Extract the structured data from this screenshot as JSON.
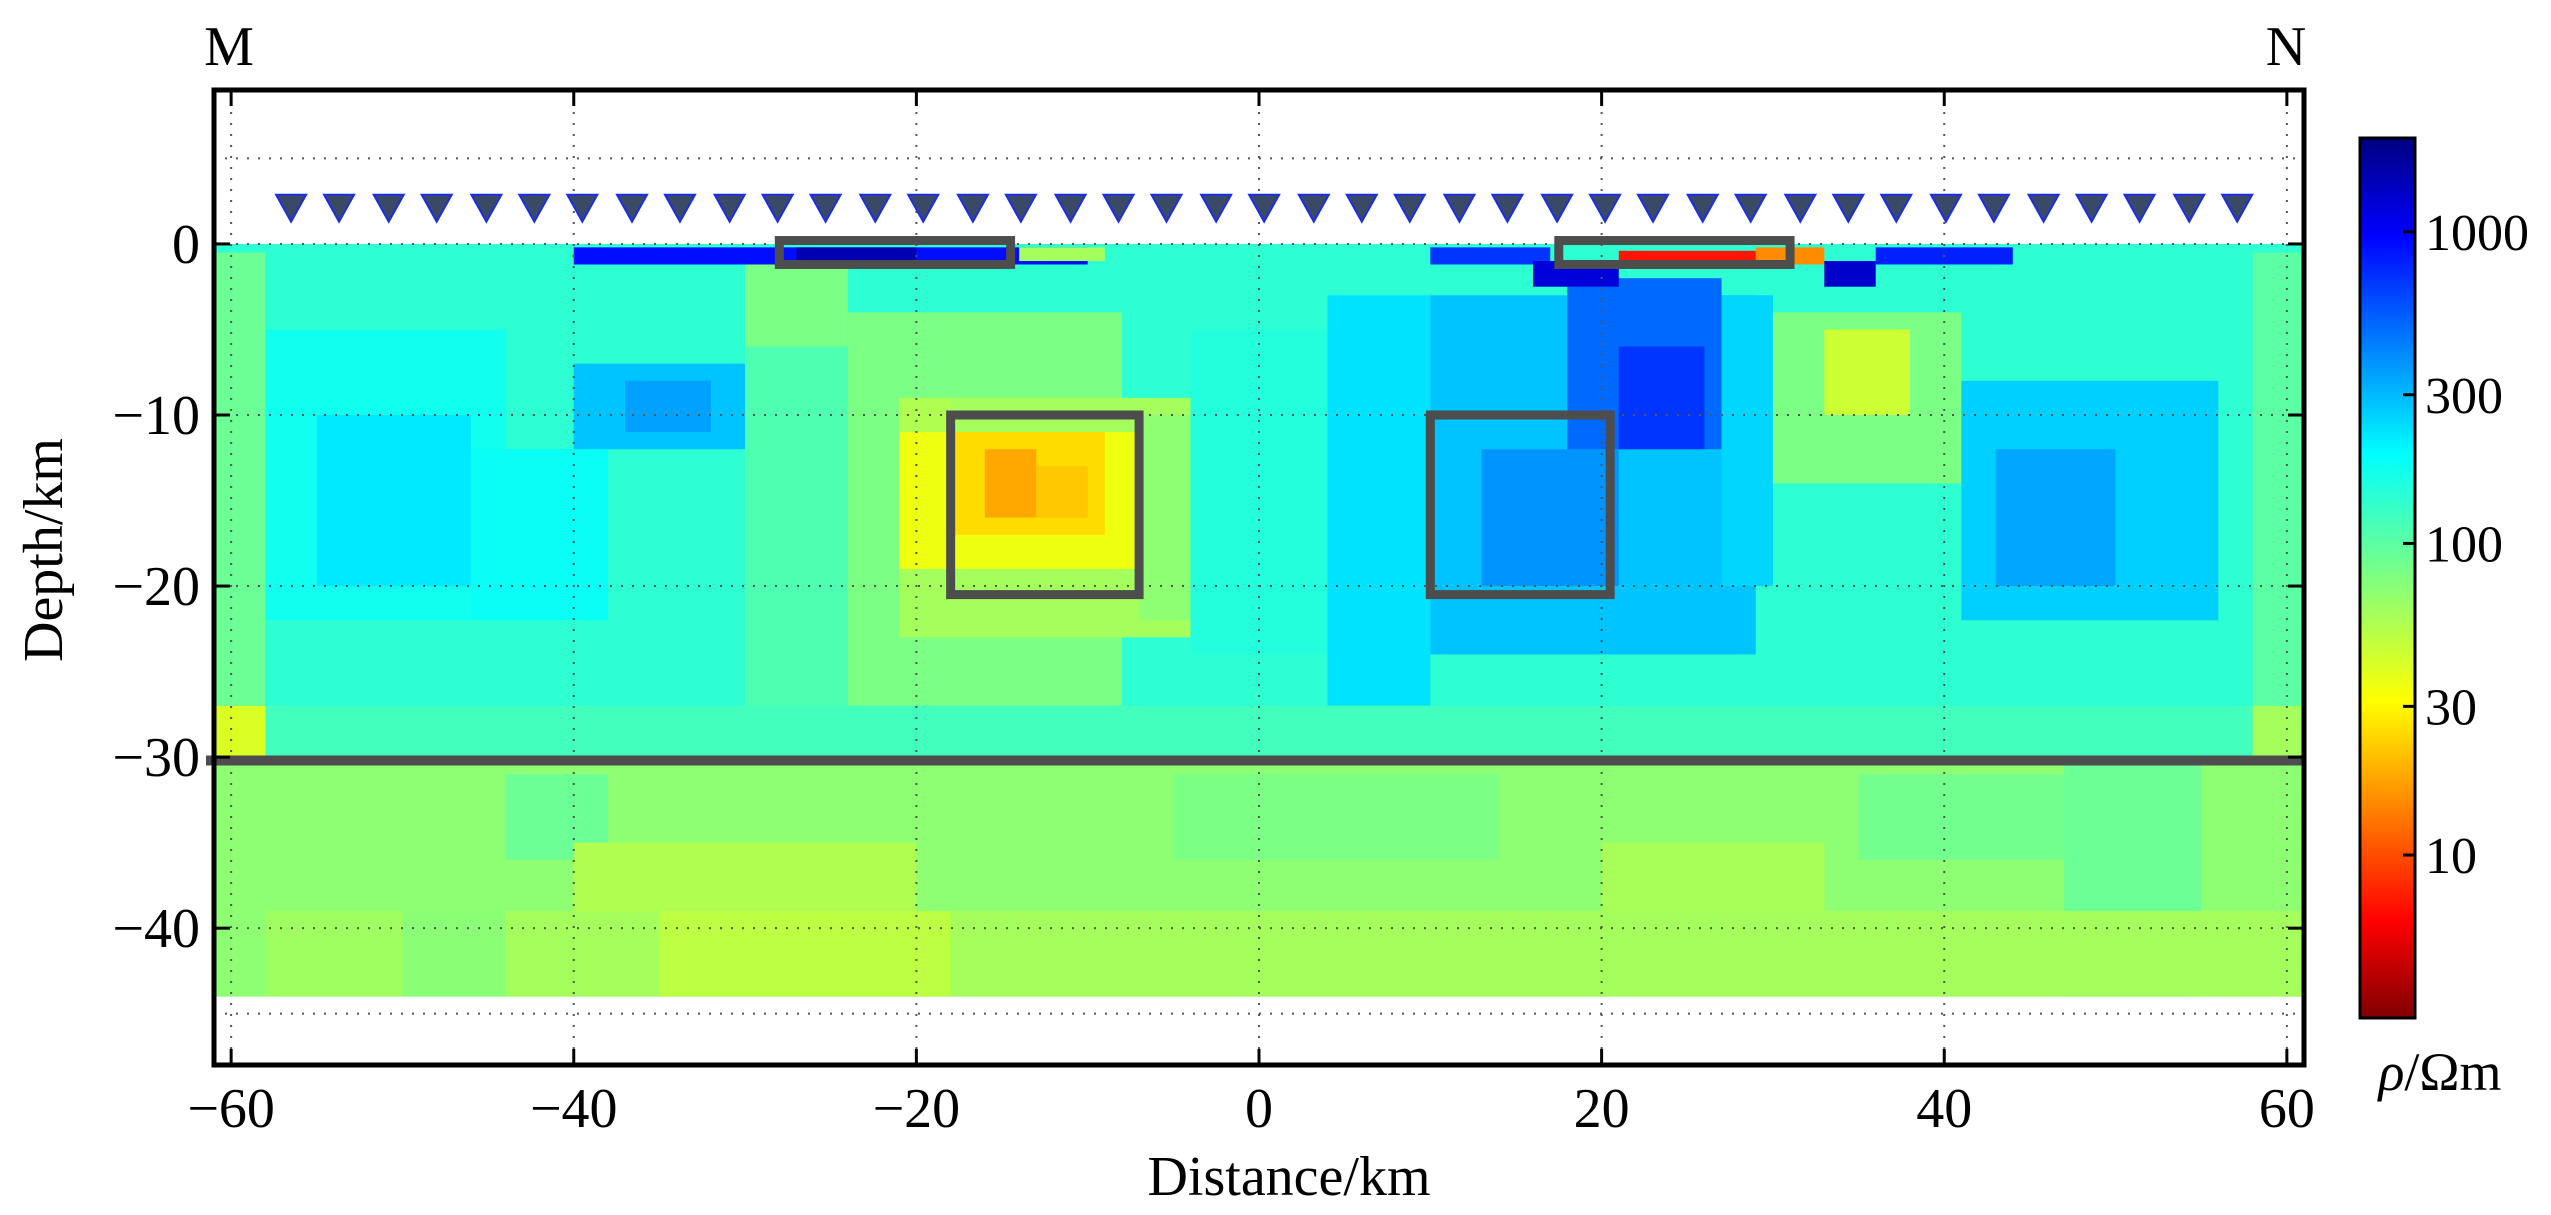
{
  "chart_data": {
    "type": "heatmap",
    "title": "",
    "corner_labels": {
      "left": "M",
      "right": "N"
    },
    "xlabel": "Distance/km",
    "ylabel": "Depth/km",
    "xlim": [
      -61,
      61
    ],
    "ylim": [
      -48,
      9
    ],
    "x_ticks": [
      -60,
      -40,
      -20,
      0,
      20,
      40,
      60
    ],
    "x_tick_labels": [
      "−60",
      "−40",
      "−20",
      "0",
      "20",
      "40",
      "60"
    ],
    "y_ticks": [
      0,
      -10,
      -20,
      -30,
      -40
    ],
    "y_tick_labels": [
      "0",
      "−10",
      "−20",
      "−30",
      "−40"
    ],
    "grid": "dotted",
    "model_extent": {
      "x": [
        -61,
        61
      ],
      "depth": [
        0,
        -44
      ]
    },
    "stations": {
      "depth": 2,
      "x": [
        -56.5,
        -53.7,
        -50.8,
        -48,
        -45.1,
        -42.3,
        -39.5,
        -36.6,
        -33.8,
        -30.9,
        -28.1,
        -25.3,
        -22.4,
        -19.6,
        -16.7,
        -13.9,
        -11,
        -8.2,
        -5.4,
        -2.5,
        0.3,
        3.2,
        6,
        8.8,
        11.7,
        14.5,
        17.4,
        20.2,
        23,
        25.9,
        28.7,
        31.6,
        34.4,
        37.2,
        40.1,
        42.9,
        45.8,
        48.6,
        51.4,
        54.3,
        57.1
      ]
    },
    "boundary_line": {
      "depth": -30.2,
      "color": "#4d4d4d"
    },
    "highlight_boxes": [
      {
        "x": [
          -28,
          -14.5
        ],
        "depth": [
          0.2,
          -1.2
        ]
      },
      {
        "x": [
          17.5,
          31
        ],
        "depth": [
          0.2,
          -1.2
        ]
      },
      {
        "x": [
          -18,
          -7
        ],
        "depth": [
          -10,
          -20.5
        ]
      },
      {
        "x": [
          10,
          20.5
        ],
        "depth": [
          -10,
          -20.5
        ]
      }
    ],
    "resistivity_cells": [
      {
        "x": [
          -61,
          61
        ],
        "depth": [
          0,
          -44
        ],
        "rho": 140
      },
      {
        "x": [
          -61,
          -58
        ],
        "depth": [
          -0.5,
          -27
        ],
        "rho": 90
      },
      {
        "x": [
          58,
          61
        ],
        "depth": [
          -0.5,
          -27
        ],
        "rho": 100
      },
      {
        "x": [
          -58,
          -44
        ],
        "depth": [
          -5,
          -22
        ],
        "rho": 170
      },
      {
        "x": [
          -55,
          -46
        ],
        "depth": [
          -10,
          -20
        ],
        "rho": 220
      },
      {
        "x": [
          -46,
          -38
        ],
        "depth": [
          -12,
          -22
        ],
        "rho": 180
      },
      {
        "x": [
          -40,
          -30
        ],
        "depth": [
          -7,
          -12
        ],
        "rho": 280
      },
      {
        "x": [
          -37,
          -32
        ],
        "depth": [
          -8,
          -11
        ],
        "rho": 350
      },
      {
        "x": [
          -30,
          -24
        ],
        "depth": [
          -1,
          -6
        ],
        "rho": 80
      },
      {
        "x": [
          -30,
          -24
        ],
        "depth": [
          -6,
          -27
        ],
        "rho": 110
      },
      {
        "x": [
          -24,
          -8
        ],
        "depth": [
          -4,
          -27
        ],
        "rho": 80
      },
      {
        "x": [
          -21,
          -4
        ],
        "depth": [
          -9,
          -23
        ],
        "rho": 60
      },
      {
        "x": [
          -21,
          -18
        ],
        "depth": [
          -9,
          -11
        ],
        "rho": 55
      },
      {
        "x": [
          -21,
          -7
        ],
        "depth": [
          -11,
          -19
        ],
        "rho": 35
      },
      {
        "x": [
          -18,
          -9
        ],
        "depth": [
          -11,
          -17
        ],
        "rho": 25
      },
      {
        "x": [
          -16,
          -13
        ],
        "depth": [
          -12,
          -16
        ],
        "rho": 18
      },
      {
        "x": [
          -13,
          -10
        ],
        "depth": [
          -13,
          -16
        ],
        "rho": 22
      },
      {
        "x": [
          -7,
          -4
        ],
        "depth": [
          -10,
          -22
        ],
        "rho": 70
      },
      {
        "x": [
          -4,
          4
        ],
        "depth": [
          -5,
          -24
        ],
        "rho": 150
      },
      {
        "x": [
          4,
          10
        ],
        "depth": [
          -3,
          -27
        ],
        "rho": 230
      },
      {
        "x": [
          10,
          29
        ],
        "depth": [
          -3,
          -24
        ],
        "rho": 280
      },
      {
        "x": [
          13,
          21
        ],
        "depth": [
          -12,
          -20
        ],
        "rho": 380
      },
      {
        "x": [
          18,
          27
        ],
        "depth": [
          -2,
          -12
        ],
        "rho": 500
      },
      {
        "x": [
          21,
          26
        ],
        "depth": [
          -6,
          -12
        ],
        "rho": 700
      },
      {
        "x": [
          27,
          30
        ],
        "depth": [
          -3,
          -20
        ],
        "rho": 250
      },
      {
        "x": [
          30,
          41
        ],
        "depth": [
          -4,
          -14
        ],
        "rho": 80
      },
      {
        "x": [
          33,
          38
        ],
        "depth": [
          -5,
          -10
        ],
        "rho": 45
      },
      {
        "x": [
          41,
          56
        ],
        "depth": [
          -8,
          -22
        ],
        "rho": 260
      },
      {
        "x": [
          43,
          50
        ],
        "depth": [
          -12,
          -20
        ],
        "rho": 340
      },
      {
        "x": [
          -61,
          61
        ],
        "depth": [
          -27,
          -30
        ],
        "rho": 120
      },
      {
        "x": [
          -61,
          -58
        ],
        "depth": [
          -27,
          -30
        ],
        "rho": 40
      },
      {
        "x": [
          58,
          61
        ],
        "depth": [
          -27,
          -30
        ],
        "rho": 60
      },
      {
        "x": [
          -61,
          61
        ],
        "depth": [
          -30,
          -44
        ],
        "rho": 70
      },
      {
        "x": [
          -44,
          -38
        ],
        "depth": [
          -31,
          -36
        ],
        "rho": 90
      },
      {
        "x": [
          -5,
          14
        ],
        "depth": [
          -31,
          -36
        ],
        "rho": 80
      },
      {
        "x": [
          35,
          50
        ],
        "depth": [
          -31,
          -36
        ],
        "rho": 85
      },
      {
        "x": [
          47,
          55
        ],
        "depth": [
          -30,
          -44
        ],
        "rho": 90
      },
      {
        "x": [
          -40,
          -20
        ],
        "depth": [
          -35,
          -39
        ],
        "rho": 55
      },
      {
        "x": [
          20,
          33
        ],
        "depth": [
          -35,
          -39
        ],
        "rho": 58
      },
      {
        "x": [
          -44,
          61
        ],
        "depth": [
          -39,
          -44
        ],
        "rho": 60
      },
      {
        "x": [
          -35,
          -18
        ],
        "depth": [
          -39,
          -44
        ],
        "rho": 50
      },
      {
        "x": [
          -58,
          -50
        ],
        "depth": [
          -39,
          -44
        ],
        "rho": 62
      },
      {
        "x": [
          -50,
          -44
        ],
        "depth": [
          -39,
          -44
        ],
        "rho": 72
      },
      {
        "x": [
          -40,
          -10
        ],
        "depth": [
          -0.2,
          -1.2
        ],
        "rho": 900
      },
      {
        "x": [
          -27,
          -20
        ],
        "depth": [
          -0.2,
          -1
        ],
        "rho": 1500
      },
      {
        "x": [
          -14,
          -9
        ],
        "depth": [
          -0.2,
          -1
        ],
        "rho": 60
      },
      {
        "x": [
          10,
          17
        ],
        "depth": [
          -0.2,
          -1.2
        ],
        "rho": 700
      },
      {
        "x": [
          16,
          21
        ],
        "depth": [
          -1,
          -2.5
        ],
        "rho": 1200
      },
      {
        "x": [
          21,
          29
        ],
        "depth": [
          -0.4,
          -1.2
        ],
        "rho": 7
      },
      {
        "x": [
          29,
          33
        ],
        "depth": [
          -0.2,
          -1.2
        ],
        "rho": 15
      },
      {
        "x": [
          33,
          36
        ],
        "depth": [
          -1,
          -2.5
        ],
        "rho": 1300
      },
      {
        "x": [
          36,
          44
        ],
        "depth": [
          -0.2,
          -1.2
        ],
        "rho": 800
      }
    ],
    "colorbar": {
      "label_symbol": "ρ",
      "label_unit": "/Ωm",
      "scale": "log",
      "range": [
        3,
        2000
      ],
      "ticks": [
        10,
        30,
        100,
        300,
        1000
      ],
      "tick_labels": [
        "10",
        "30",
        "100",
        "300",
        "1000"
      ]
    }
  }
}
